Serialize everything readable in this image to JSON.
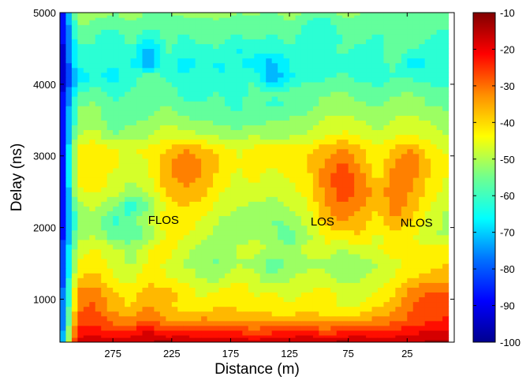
{
  "chart_data": {
    "type": "heatmap",
    "subtype": "filled-contour",
    "xlabel": "Distance (m)",
    "ylabel": "Delay (ns)",
    "x_reversed": true,
    "xlim": [
      -15,
      320
    ],
    "ylim": [
      400,
      5000
    ],
    "xticks": [
      275,
      225,
      175,
      125,
      75,
      25
    ],
    "xtick_labels": [
      "275",
      "225",
      "175",
      "125",
      "75",
      "25"
    ],
    "yticks": [
      1000,
      2000,
      3000,
      4000,
      5000
    ],
    "ytick_labels": [
      "1000",
      "2000",
      "3000",
      "4000",
      "5000"
    ],
    "colorbar": {
      "colormap": "jet",
      "range": [
        -100,
        -10
      ],
      "ticks": [
        -10,
        -20,
        -30,
        -40,
        -50,
        -60,
        -70,
        -80,
        -90,
        -100
      ],
      "tick_labels": [
        "-10",
        "-20",
        "-30",
        "-40",
        "-50",
        "-60",
        "-70",
        "-80",
        "-90",
        "-100"
      ]
    },
    "annotations": [
      {
        "text": "FLOS",
        "x": 232,
        "y": 2050
      },
      {
        "text": "LOS",
        "x": 97,
        "y": 2030
      },
      {
        "text": "NLOS",
        "x": 17,
        "y": 2010
      }
    ],
    "distance": [
      320,
      305,
      290,
      275,
      260,
      245,
      230,
      215,
      200,
      185,
      170,
      155,
      140,
      125,
      110,
      95,
      80,
      65,
      50,
      35,
      20,
      5,
      -10
    ],
    "delay": [
      400,
      500,
      700,
      900,
      1100,
      1300,
      1500,
      1700,
      1900,
      2100,
      2300,
      2500,
      2700,
      2900,
      3100,
      3300,
      3500,
      3700,
      3900,
      4100,
      4300,
      4500,
      4700,
      4900,
      5000
    ],
    "power_db": [
      [
        -80,
        -15,
        -15,
        -14,
        -16,
        -15,
        -13,
        -16,
        -15,
        -14,
        -15,
        -16,
        -14,
        -15,
        -15,
        -14,
        -13,
        -15,
        -14,
        -16,
        -15,
        -14,
        -13
      ],
      [
        -85,
        -22,
        -20,
        -24,
        -21,
        -17,
        -22,
        -20,
        -23,
        -22,
        -21,
        -25,
        -23,
        -22,
        -20,
        -24,
        -22,
        -20,
        -23,
        -21,
        -19,
        -18,
        -17
      ],
      [
        -85,
        -28,
        -27,
        -31,
        -33,
        -29,
        -34,
        -36,
        -33,
        -35,
        -36,
        -37,
        -35,
        -38,
        -36,
        -37,
        -34,
        -36,
        -33,
        -31,
        -28,
        -26,
        -24
      ],
      [
        -88,
        -32,
        -29,
        -38,
        -40,
        -34,
        -39,
        -42,
        -43,
        -40,
        -41,
        -42,
        -45,
        -43,
        -42,
        -44,
        -46,
        -45,
        -40,
        -37,
        -30,
        -28,
        -27
      ],
      [
        -88,
        -34,
        -32,
        -39,
        -43,
        -37,
        -38,
        -41,
        -47,
        -44,
        -40,
        -46,
        -44,
        -48,
        -45,
        -43,
        -47,
        -49,
        -44,
        -40,
        -32,
        -30,
        -30
      ],
      [
        -90,
        -40,
        -38,
        -44,
        -48,
        -41,
        -45,
        -47,
        -50,
        -52,
        -46,
        -48,
        -55,
        -50,
        -49,
        -47,
        -52,
        -50,
        -48,
        -44,
        -40,
        -38,
        -36
      ],
      [
        -90,
        -45,
        -42,
        -47,
        -51,
        -44,
        -46,
        -50,
        -53,
        -56,
        -50,
        -52,
        -58,
        -54,
        -51,
        -52,
        -55,
        -53,
        -50,
        -47,
        -43,
        -42,
        -40
      ],
      [
        -92,
        -47,
        -44,
        -48,
        -52,
        -46,
        -40,
        -49,
        -51,
        -54,
        -49,
        -47,
        -52,
        -55,
        -48,
        -45,
        -51,
        -47,
        -45,
        -42,
        -44,
        -43,
        -42
      ],
      [
        -92,
        -52,
        -50,
        -58,
        -60,
        -54,
        -45,
        -44,
        -48,
        -52,
        -55,
        -50,
        -53,
        -58,
        -52,
        -44,
        -42,
        -40,
        -46,
        -43,
        -45,
        -49,
        -51
      ],
      [
        -94,
        -55,
        -52,
        -62,
        -57,
        -50,
        -42,
        -43,
        -45,
        -50,
        -53,
        -52,
        -56,
        -54,
        -48,
        -38,
        -35,
        -38,
        -42,
        -35,
        -40,
        -48,
        -52
      ],
      [
        -94,
        -52,
        -49,
        -54,
        -64,
        -55,
        -44,
        -40,
        -42,
        -47,
        -50,
        -51,
        -52,
        -49,
        -46,
        -36,
        -30,
        -34,
        -40,
        -32,
        -38,
        -46,
        -50
      ],
      [
        -95,
        -46,
        -44,
        -48,
        -52,
        -50,
        -40,
        -36,
        -38,
        -44,
        -48,
        -46,
        -50,
        -46,
        -44,
        -34,
        -28,
        -30,
        -38,
        -31,
        -36,
        -42,
        -47
      ],
      [
        -95,
        -44,
        -42,
        -46,
        -50,
        -47,
        -36,
        -33,
        -35,
        -42,
        -46,
        -44,
        -47,
        -45,
        -42,
        -32,
        -26,
        -33,
        -42,
        -30,
        -34,
        -41,
        -46
      ],
      [
        -95,
        -42,
        -40,
        -44,
        -47,
        -45,
        -38,
        -31,
        -34,
        -40,
        -45,
        -43,
        -44,
        -43,
        -40,
        -35,
        -28,
        -36,
        -44,
        -34,
        -32,
        -40,
        -44
      ],
      [
        -95,
        -43,
        -41,
        -45,
        -45,
        -44,
        -40,
        -35,
        -38,
        -41,
        -46,
        -44,
        -42,
        -44,
        -41,
        -38,
        -34,
        -39,
        -45,
        -38,
        -35,
        -43,
        -46
      ],
      [
        -95,
        -50,
        -48,
        -55,
        -53,
        -51,
        -46,
        -48,
        -50,
        -52,
        -54,
        -50,
        -53,
        -51,
        -50,
        -47,
        -44,
        -46,
        -50,
        -46,
        -45,
        -48,
        -50
      ],
      [
        -95,
        -54,
        -53,
        -58,
        -56,
        -55,
        -52,
        -54,
        -55,
        -56,
        -58,
        -57,
        -55,
        -54,
        -52,
        -49,
        -48,
        -50,
        -52,
        -49,
        -48,
        -51,
        -53
      ],
      [
        -95,
        -55,
        -54,
        -59,
        -57,
        -57,
        -55,
        -58,
        -60,
        -59,
        -62,
        -56,
        -61,
        -60,
        -58,
        -53,
        -52,
        -54,
        -55,
        -53,
        -52,
        -55,
        -56
      ],
      [
        -96,
        -60,
        -58,
        -62,
        -59,
        -60,
        -56,
        -62,
        -61,
        -60,
        -63,
        -58,
        -60,
        -59,
        -57,
        -56,
        -55,
        -57,
        -58,
        -56,
        -55,
        -58,
        -59
      ],
      [
        -96,
        -70,
        -64,
        -68,
        -62,
        -56,
        -60,
        -64,
        -59,
        -65,
        -62,
        -60,
        -76,
        -66,
        -62,
        -61,
        -59,
        -62,
        -63,
        -60,
        -61,
        -62,
        -63
      ],
      [
        -96,
        -63,
        -60,
        -64,
        -64,
        -76,
        -61,
        -68,
        -64,
        -66,
        -64,
        -68,
        -72,
        -65,
        -63,
        -60,
        -62,
        -64,
        -62,
        -58,
        -70,
        -62,
        -63
      ],
      [
        -96,
        -62,
        -61,
        -66,
        -60,
        -74,
        -58,
        -63,
        -61,
        -60,
        -66,
        -62,
        -64,
        -61,
        -60,
        -63,
        -59,
        -61,
        -62,
        -57,
        -60,
        -61,
        -62
      ],
      [
        -96,
        -58,
        -59,
        -63,
        -56,
        -62,
        -59,
        -60,
        -58,
        -57,
        -60,
        -58,
        -60,
        -57,
        -63,
        -64,
        -60,
        -58,
        -60,
        -59,
        -58,
        -60,
        -61
      ],
      [
        -96,
        -52,
        -55,
        -58,
        -54,
        -58,
        -57,
        -56,
        -56,
        -55,
        -57,
        -56,
        -58,
        -54,
        -60,
        -62,
        -55,
        -56,
        -57,
        -58,
        -56,
        -57,
        -58
      ],
      [
        -96,
        -50,
        -52,
        -55,
        -53,
        -55,
        -55,
        -54,
        -54,
        -53,
        -55,
        -54,
        -56,
        -53,
        -56,
        -58,
        -54,
        -55,
        -55,
        -56,
        -55,
        -56,
        -57
      ]
    ]
  }
}
